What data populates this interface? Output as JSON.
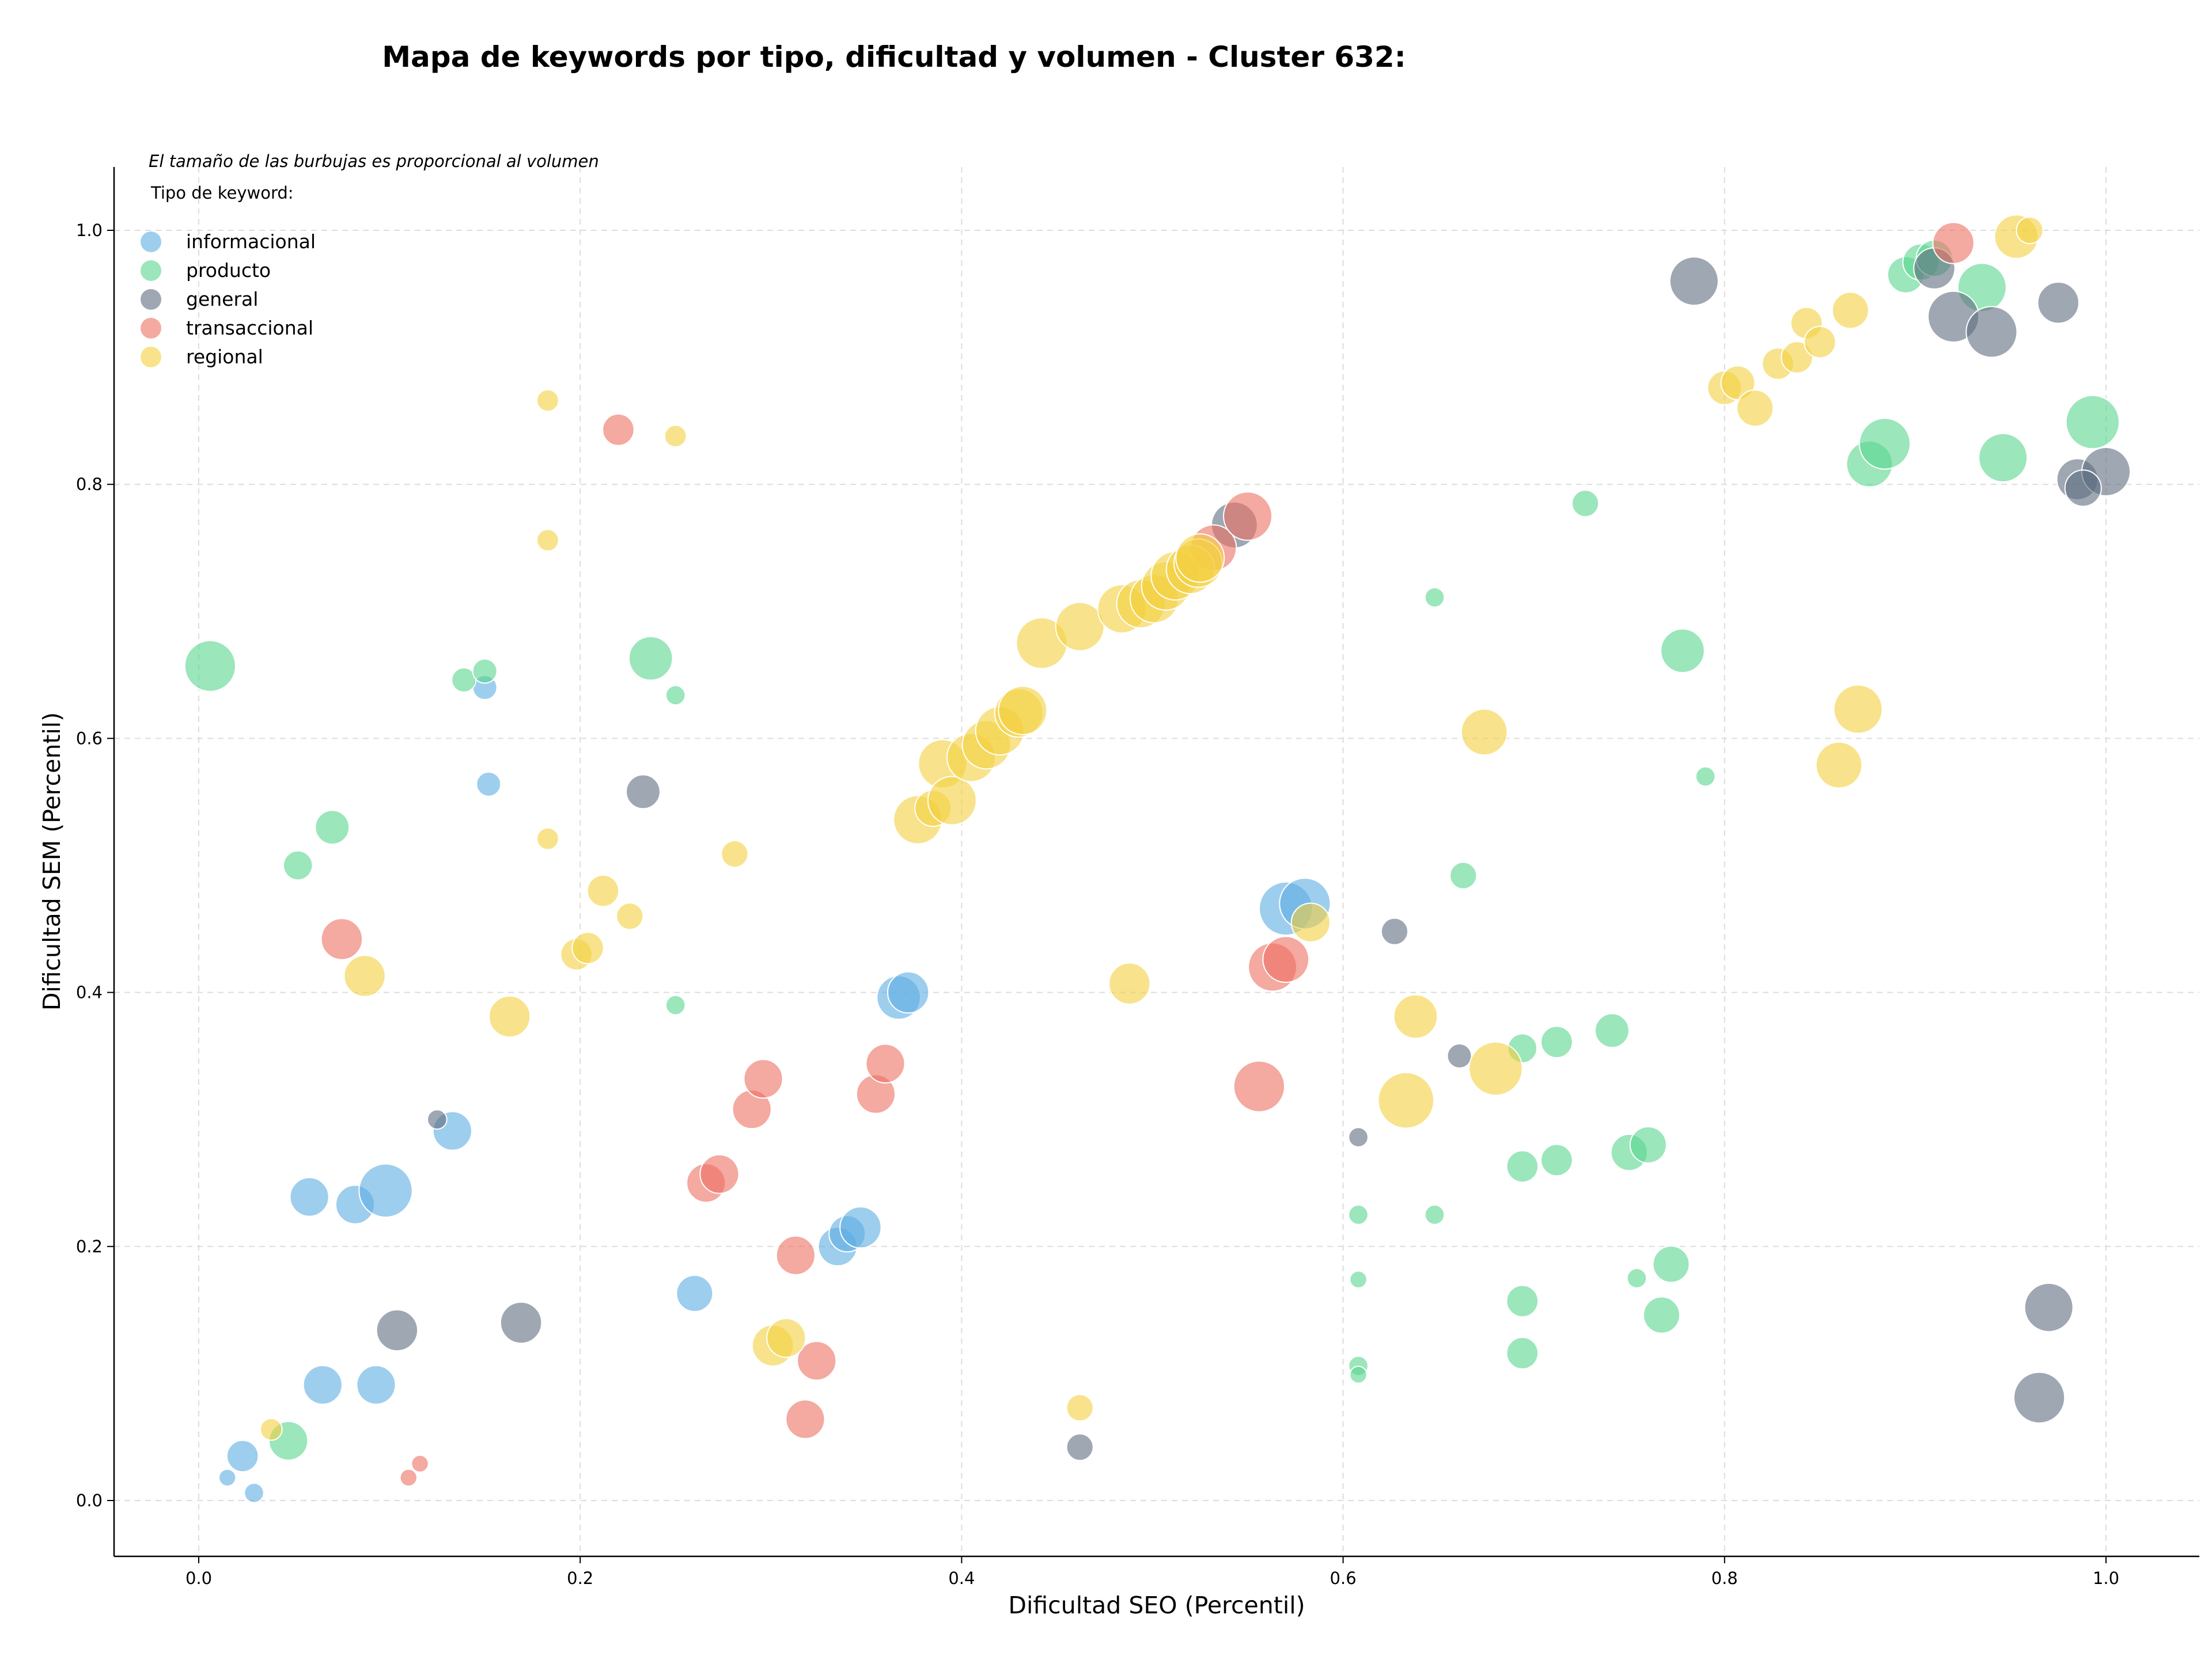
{
  "chart_data": {
    "type": "scatter",
    "title": "Mapa de keywords por tipo, dificultad y volumen - Cluster 632:",
    "xlabel": "Dificultad SEO (Percentil)",
    "ylabel": "Dificultad SEM (Percentil)",
    "xlim": [
      -0.045,
      1.05
    ],
    "ylim": [
      -0.045,
      1.05
    ],
    "xticks": [
      0.0,
      0.2,
      0.4,
      0.6,
      0.8,
      1.0
    ],
    "yticks": [
      0.0,
      0.2,
      0.4,
      0.6,
      0.8,
      1.0
    ],
    "xtick_labels": [
      "0.0",
      "0.2",
      "0.4",
      "0.6",
      "0.8",
      "1.0"
    ],
    "ytick_labels": [
      "0.0",
      "0.2",
      "0.4",
      "0.6",
      "0.8",
      "1.0"
    ],
    "grid": true,
    "note": "El tamaño de las burbujas es proporcional al volumen",
    "legend_title": "Tipo de keyword:",
    "legend_position": "top-left",
    "series": [
      {
        "name": "informacional",
        "color": "#5DADE2",
        "points": [
          [
            0.015,
            0.018,
            14
          ],
          [
            0.023,
            0.035,
            26
          ],
          [
            0.029,
            0.006,
            16
          ],
          [
            0.058,
            0.239,
            32
          ],
          [
            0.065,
            0.091,
            32
          ],
          [
            0.082,
            0.233,
            32
          ],
          [
            0.093,
            0.091,
            32
          ],
          [
            0.098,
            0.244,
            44
          ],
          [
            0.133,
            0.291,
            32
          ],
          [
            0.15,
            0.64,
            20
          ],
          [
            0.152,
            0.564,
            20
          ],
          [
            0.26,
            0.163,
            30
          ],
          [
            0.335,
            0.2,
            32
          ],
          [
            0.34,
            0.21,
            30
          ],
          [
            0.347,
            0.215,
            34
          ],
          [
            0.367,
            0.396,
            36
          ],
          [
            0.372,
            0.4,
            34
          ],
          [
            0.57,
            0.466,
            44
          ],
          [
            0.58,
            0.47,
            42
          ]
        ]
      },
      {
        "name": "producto",
        "color": "#58D68D",
        "points": [
          [
            0.006,
            0.657,
            42
          ],
          [
            0.047,
            0.047,
            32
          ],
          [
            0.052,
            0.5,
            24
          ],
          [
            0.07,
            0.53,
            28
          ],
          [
            0.139,
            0.646,
            20
          ],
          [
            0.15,
            0.653,
            20
          ],
          [
            0.237,
            0.663,
            36
          ],
          [
            0.25,
            0.634,
            16
          ],
          [
            0.25,
            0.39,
            16
          ],
          [
            0.608,
            0.225,
            16
          ],
          [
            0.608,
            0.174,
            14
          ],
          [
            0.608,
            0.106,
            16
          ],
          [
            0.608,
            0.099,
            14
          ],
          [
            0.648,
            0.711,
            16
          ],
          [
            0.648,
            0.225,
            16
          ],
          [
            0.663,
            0.492,
            22
          ],
          [
            0.694,
            0.356,
            24
          ],
          [
            0.694,
            0.263,
            26
          ],
          [
            0.694,
            0.157,
            26
          ],
          [
            0.694,
            0.116,
            26
          ],
          [
            0.712,
            0.361,
            26
          ],
          [
            0.712,
            0.268,
            26
          ],
          [
            0.727,
            0.785,
            22
          ],
          [
            0.741,
            0.37,
            28
          ],
          [
            0.75,
            0.274,
            30
          ],
          [
            0.754,
            0.175,
            16
          ],
          [
            0.76,
            0.28,
            30
          ],
          [
            0.767,
            0.146,
            30
          ],
          [
            0.772,
            0.186,
            30
          ],
          [
            0.778,
            0.669,
            36
          ],
          [
            0.79,
            0.57,
            16
          ],
          [
            0.876,
            0.816,
            38
          ],
          [
            0.884,
            0.832,
            42
          ],
          [
            0.895,
            0.965,
            30
          ],
          [
            0.903,
            0.975,
            30
          ],
          [
            0.91,
            0.978,
            30
          ],
          [
            0.935,
            0.955,
            40
          ],
          [
            0.946,
            0.821,
            40
          ],
          [
            0.993,
            0.849,
            44
          ]
        ]
      },
      {
        "name": "general",
        "color": "#5D6D7E",
        "points": [
          [
            0.125,
            0.3,
            16
          ],
          [
            0.104,
            0.134,
            34
          ],
          [
            0.169,
            0.14,
            34
          ],
          [
            0.233,
            0.558,
            28
          ],
          [
            0.462,
            0.042,
            22
          ],
          [
            0.608,
            0.286,
            16
          ],
          [
            0.627,
            0.448,
            22
          ],
          [
            0.661,
            0.35,
            20
          ],
          [
            0.543,
            0.768,
            38
          ],
          [
            0.784,
            0.96,
            40
          ],
          [
            0.91,
            0.97,
            34
          ],
          [
            0.92,
            0.932,
            42
          ],
          [
            0.94,
            0.92,
            42
          ],
          [
            0.975,
            0.943,
            34
          ],
          [
            0.97,
            0.152,
            40
          ],
          [
            0.965,
            0.081,
            42
          ],
          [
            0.985,
            0.804,
            34
          ],
          [
            1.0,
            0.81,
            40
          ],
          [
            0.988,
            0.797,
            30
          ]
        ]
      },
      {
        "name": "transaccional",
        "color": "#EC7063",
        "points": [
          [
            0.11,
            0.018,
            14
          ],
          [
            0.116,
            0.029,
            14
          ],
          [
            0.075,
            0.442,
            34
          ],
          [
            0.22,
            0.843,
            26
          ],
          [
            0.266,
            0.25,
            32
          ],
          [
            0.273,
            0.257,
            32
          ],
          [
            0.29,
            0.308,
            32
          ],
          [
            0.296,
            0.332,
            32
          ],
          [
            0.313,
            0.193,
            32
          ],
          [
            0.318,
            0.064,
            32
          ],
          [
            0.324,
            0.11,
            32
          ],
          [
            0.355,
            0.32,
            32
          ],
          [
            0.36,
            0.344,
            32
          ],
          [
            0.532,
            0.75,
            38
          ],
          [
            0.55,
            0.775,
            40
          ],
          [
            0.556,
            0.326,
            42
          ],
          [
            0.563,
            0.42,
            40
          ],
          [
            0.57,
            0.426,
            38
          ],
          [
            0.92,
            0.99,
            34
          ]
        ]
      },
      {
        "name": "regional",
        "color": "#F4D03F",
        "points": [
          [
            0.038,
            0.056,
            18
          ],
          [
            0.087,
            0.413,
            34
          ],
          [
            0.163,
            0.381,
            34
          ],
          [
            0.183,
            0.866,
            18
          ],
          [
            0.183,
            0.756,
            18
          ],
          [
            0.183,
            0.521,
            18
          ],
          [
            0.198,
            0.43,
            26
          ],
          [
            0.204,
            0.435,
            26
          ],
          [
            0.212,
            0.48,
            26
          ],
          [
            0.226,
            0.46,
            22
          ],
          [
            0.25,
            0.838,
            18
          ],
          [
            0.281,
            0.509,
            22
          ],
          [
            0.301,
            0.122,
            34
          ],
          [
            0.308,
            0.128,
            32
          ],
          [
            0.377,
            0.536,
            40
          ],
          [
            0.385,
            0.545,
            30
          ],
          [
            0.39,
            0.58,
            40
          ],
          [
            0.395,
            0.551,
            40
          ],
          [
            0.405,
            0.585,
            40
          ],
          [
            0.413,
            0.595,
            40
          ],
          [
            0.42,
            0.606,
            40
          ],
          [
            0.43,
            0.62,
            40
          ],
          [
            0.432,
            0.622,
            40
          ],
          [
            0.442,
            0.675,
            42
          ],
          [
            0.462,
            0.688,
            40
          ],
          [
            0.462,
            0.073,
            22
          ],
          [
            0.484,
            0.702,
            40
          ],
          [
            0.488,
            0.407,
            34
          ],
          [
            0.494,
            0.706,
            40
          ],
          [
            0.501,
            0.71,
            40
          ],
          [
            0.507,
            0.72,
            40
          ],
          [
            0.512,
            0.728,
            40
          ],
          [
            0.52,
            0.733,
            40
          ],
          [
            0.524,
            0.738,
            40
          ],
          [
            0.525,
            0.742,
            40
          ],
          [
            0.583,
            0.455,
            32
          ],
          [
            0.633,
            0.315,
            46
          ],
          [
            0.638,
            0.381,
            36
          ],
          [
            0.674,
            0.605,
            38
          ],
          [
            0.68,
            0.34,
            44
          ],
          [
            0.8,
            0.876,
            28
          ],
          [
            0.807,
            0.88,
            28
          ],
          [
            0.816,
            0.86,
            30
          ],
          [
            0.828,
            0.895,
            26
          ],
          [
            0.838,
            0.9,
            26
          ],
          [
            0.843,
            0.927,
            26
          ],
          [
            0.85,
            0.912,
            26
          ],
          [
            0.86,
            0.579,
            38
          ],
          [
            0.866,
            0.937,
            30
          ],
          [
            0.87,
            0.623,
            40
          ],
          [
            0.953,
            0.995,
            36
          ],
          [
            0.96,
            1.0,
            22
          ]
        ]
      }
    ]
  }
}
